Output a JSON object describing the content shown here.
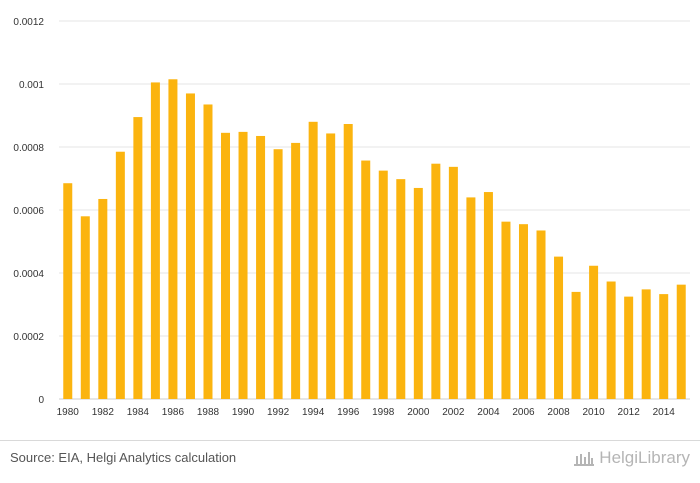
{
  "chart_data": {
    "type": "bar",
    "title": "",
    "xlabel": "",
    "ylabel": "",
    "ylim": [
      0,
      0.0012
    ],
    "y_ticks": [
      "0",
      "0.0002",
      "0.0004",
      "0.0006",
      "0.0008",
      "0.001",
      "0.0012"
    ],
    "x_tick_labels": [
      "1980",
      "1982",
      "1984",
      "1986",
      "1988",
      "1990",
      "1992",
      "1994",
      "1996",
      "1998",
      "2000",
      "2002",
      "2004",
      "2006",
      "2008",
      "2010",
      "2012",
      "2014"
    ],
    "categories": [
      "1980",
      "1981",
      "1982",
      "1983",
      "1984",
      "1985",
      "1986",
      "1987",
      "1988",
      "1989",
      "1990",
      "1991",
      "1992",
      "1993",
      "1994",
      "1995",
      "1996",
      "1997",
      "1998",
      "1999",
      "2000",
      "2001",
      "2002",
      "2003",
      "2004",
      "2005",
      "2006",
      "2007",
      "2008",
      "2009",
      "2010",
      "2011",
      "2012",
      "2013",
      "2014",
      "2015"
    ],
    "values": [
      0.000685,
      0.00058,
      0.000635,
      0.000785,
      0.000895,
      0.001005,
      0.001015,
      0.00097,
      0.000935,
      0.000845,
      0.000848,
      0.000835,
      0.000793,
      0.000813,
      0.00088,
      0.000843,
      0.000873,
      0.000757,
      0.000725,
      0.000698,
      0.00067,
      0.000747,
      0.000737,
      0.00064,
      0.000657,
      0.000563,
      0.000555,
      0.000535,
      0.000452,
      0.00034,
      0.000423,
      0.000373,
      0.000325,
      0.000348,
      0.000333,
      0.000363
    ],
    "bar_color": "#FBB40F",
    "grid": true
  },
  "footer": {
    "source": "Source: EIA, Helgi Analytics calculation",
    "brand": "HelgiLibrary"
  }
}
